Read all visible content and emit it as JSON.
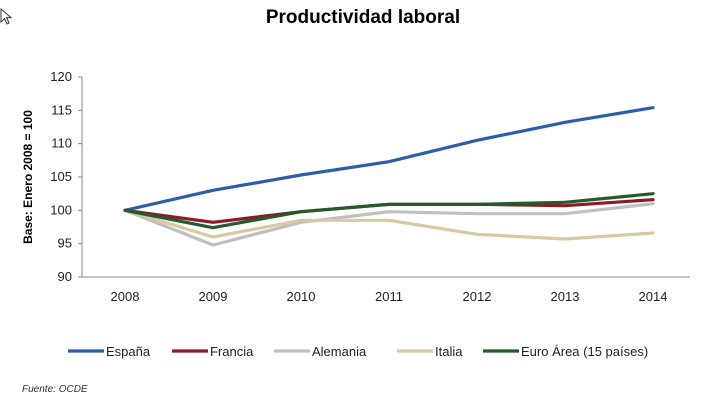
{
  "chart_data": {
    "type": "line",
    "title": "Productividad laboral",
    "ylabel": "Base: Enero 2008 = 100",
    "xlabel": "",
    "x": [
      "2008",
      "2009",
      "2010",
      "2011",
      "2012",
      "2013",
      "2014"
    ],
    "ylim": [
      90,
      120
    ],
    "yticks": [
      "90",
      "95",
      "100",
      "105",
      "110",
      "115",
      "120"
    ],
    "grid": false,
    "legend_position": "bottom",
    "series": [
      {
        "name": "España",
        "color": "#2f5ea8",
        "values": [
          100,
          103,
          105.3,
          107.3,
          110.5,
          113.2,
          115.4
        ]
      },
      {
        "name": "Francia",
        "color": "#8b1a2b",
        "values": [
          100,
          98.2,
          99.8,
          100.9,
          100.9,
          100.7,
          101.6
        ]
      },
      {
        "name": "Alemania",
        "color": "#c0c0c0",
        "values": [
          100,
          94.8,
          98.2,
          99.8,
          99.5,
          99.5,
          101
        ]
      },
      {
        "name": "Italia",
        "color": "#d8c9a3",
        "values": [
          100,
          96,
          98.5,
          98.5,
          96.4,
          95.7,
          96.6
        ]
      },
      {
        "name": "Euro Área (15 países)",
        "color": "#245a2c",
        "values": [
          100,
          97.4,
          99.8,
          100.9,
          100.9,
          101.2,
          102.5
        ]
      }
    ],
    "source": "Fuente: OCDE"
  }
}
